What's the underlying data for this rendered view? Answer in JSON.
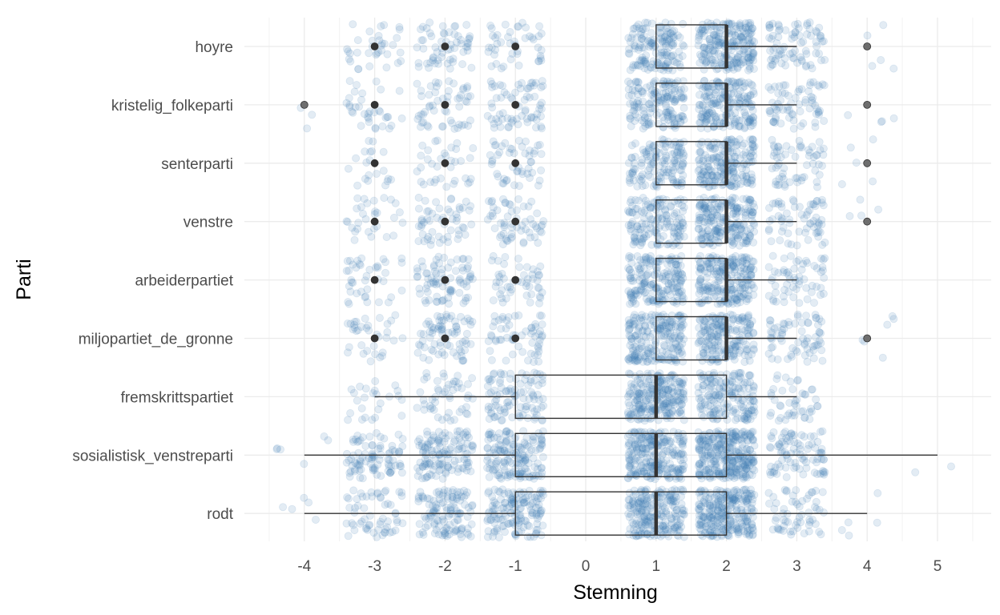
{
  "chart_data": {
    "type": "boxplot",
    "xlabel": "Stemning",
    "ylabel": "Parti",
    "xlim": [
      -4.45,
      5.55
    ],
    "x_ticks": [
      -4,
      -3,
      -2,
      -1,
      0,
      1,
      2,
      3,
      4,
      5
    ],
    "grid": true,
    "legend": "none",
    "categories": [
      "hoyre",
      "kristelig_folkeparti",
      "senterparti",
      "venstre",
      "arbeiderpartiet",
      "miljopartiet_de_gronne",
      "fremskrittspartiet",
      "sosialistisk_venstreparti",
      "rodt"
    ],
    "boxes": [
      {
        "category": "hoyre",
        "whisker_low": 1,
        "q1": 1,
        "median": 2,
        "q3": 2,
        "whisker_high": 3,
        "outliers": [
          -3,
          -2,
          -1,
          4
        ]
      },
      {
        "category": "kristelig_folkeparti",
        "whisker_low": 1,
        "q1": 1,
        "median": 2,
        "q3": 2,
        "whisker_high": 3,
        "outliers": [
          -4,
          -3,
          -2,
          -1,
          4
        ]
      },
      {
        "category": "senterparti",
        "whisker_low": 1,
        "q1": 1,
        "median": 2,
        "q3": 2,
        "whisker_high": 3,
        "outliers": [
          -3,
          -2,
          -1,
          4
        ]
      },
      {
        "category": "venstre",
        "whisker_low": 1,
        "q1": 1,
        "median": 2,
        "q3": 2,
        "whisker_high": 3,
        "outliers": [
          -3,
          -2,
          -1,
          4
        ]
      },
      {
        "category": "arbeiderpartiet",
        "whisker_low": 1,
        "q1": 1,
        "median": 2,
        "q3": 2,
        "whisker_high": 3,
        "outliers": [
          -3,
          -2,
          -1
        ]
      },
      {
        "category": "miljopartiet_de_gronne",
        "whisker_low": 1,
        "q1": 1,
        "median": 2,
        "q3": 2,
        "whisker_high": 3,
        "outliers": [
          -3,
          -2,
          -1,
          4
        ]
      },
      {
        "category": "fremskrittspartiet",
        "whisker_low": -3,
        "q1": -1,
        "median": 1,
        "q3": 2,
        "whisker_high": 3,
        "outliers": []
      },
      {
        "category": "sosialistisk_venstreparti",
        "whisker_low": -4,
        "q1": -1,
        "median": 1,
        "q3": 2,
        "whisker_high": 5,
        "outliers": []
      },
      {
        "category": "rodt",
        "whisker_low": -4,
        "q1": -1,
        "median": 1,
        "q3": 2,
        "whisker_high": 4,
        "outliers": []
      }
    ],
    "jitter_points": {
      "color": "#4682b4",
      "opacity": 0.15,
      "counts_by_category": [
        {
          "category": "hoyre",
          "values": {
            "-3": 35,
            "-2": 60,
            "-1": 45,
            "1": 150,
            "2": 220,
            "3": 80,
            "4": 5
          }
        },
        {
          "category": "kristelig_folkeparti",
          "values": {
            "-4": 3,
            "-3": 35,
            "-2": 55,
            "-1": 70,
            "1": 160,
            "2": 200,
            "3": 70,
            "4": 4
          }
        },
        {
          "category": "senterparti",
          "values": {
            "-3": 20,
            "-2": 35,
            "-1": 50,
            "1": 140,
            "2": 200,
            "3": 60,
            "4": 5
          }
        },
        {
          "category": "venstre",
          "values": {
            "-3": 30,
            "-2": 55,
            "-1": 60,
            "1": 150,
            "2": 210,
            "3": 65,
            "4": 4
          }
        },
        {
          "category": "arbeiderpartiet",
          "values": {
            "-3": 40,
            "-2": 80,
            "-1": 50,
            "1": 190,
            "2": 220,
            "3": 60
          }
        },
        {
          "category": "miljopartiet_de_gronne",
          "values": {
            "-3": 35,
            "-2": 75,
            "-1": 60,
            "1": 210,
            "2": 190,
            "3": 70,
            "4": 6
          }
        },
        {
          "category": "fremskrittspartiet",
          "values": {
            "-3": 25,
            "-2": 50,
            "-1": 100,
            "1": 230,
            "2": 170,
            "3": 45
          }
        },
        {
          "category": "sosialistisk_venstreparti",
          "values": {
            "-4": 6,
            "-3": 90,
            "-2": 130,
            "-1": 160,
            "1": 240,
            "2": 300,
            "3": 90,
            "5": 2
          }
        },
        {
          "category": "rodt",
          "values": {
            "-4": 5,
            "-3": 60,
            "-2": 120,
            "-1": 150,
            "1": 220,
            "2": 260,
            "3": 60,
            "4": 5
          }
        }
      ]
    }
  }
}
